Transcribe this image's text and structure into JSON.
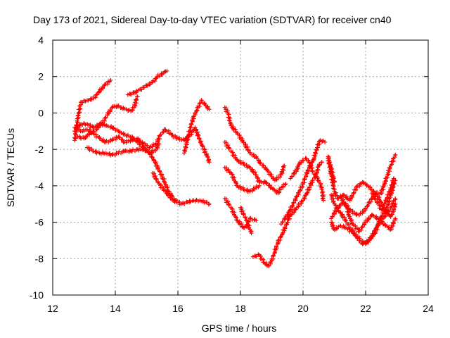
{
  "chart_data": {
    "type": "scatter",
    "title": "Day 173 of 2021, Sidereal Day-to-day VTEC variation (SDTVAR) for receiver cn40",
    "xlabel": "GPS time / hours",
    "ylabel": "SDTVAR / TECUs",
    "xlim": [
      12,
      24
    ],
    "ylim": [
      -10,
      4
    ],
    "xticks": [
      12,
      14,
      16,
      18,
      20,
      22,
      24
    ],
    "yticks": [
      -10,
      -8,
      -6,
      -4,
      -2,
      0,
      2,
      4
    ],
    "grid": true,
    "marker": "+",
    "color": "#ff0000",
    "series": [
      {
        "name": "track-a",
        "points": [
          [
            12.7,
            -1.5
          ],
          [
            12.8,
            -0.3
          ],
          [
            12.9,
            0.6
          ],
          [
            13.1,
            0.7
          ],
          [
            13.3,
            0.8
          ],
          [
            13.5,
            1.2
          ],
          [
            13.65,
            1.5
          ],
          [
            13.85,
            1.8
          ]
        ]
      },
      {
        "name": "track-b",
        "points": [
          [
            12.8,
            -1.3
          ],
          [
            13.0,
            -1.4
          ],
          [
            13.2,
            -1.1
          ],
          [
            13.4,
            -0.9
          ],
          [
            13.6,
            -0.5
          ],
          [
            13.75,
            -0.1
          ],
          [
            13.9,
            0.3
          ],
          [
            14.05,
            0.4
          ],
          [
            14.2,
            0.3
          ],
          [
            14.35,
            0.2
          ],
          [
            14.5,
            0.1
          ],
          [
            14.6,
            0.3
          ],
          [
            14.7,
            0.9
          ]
        ]
      },
      {
        "name": "track-c",
        "points": [
          [
            14.4,
            1.0
          ],
          [
            14.6,
            1.1
          ],
          [
            14.8,
            1.3
          ],
          [
            15.0,
            1.5
          ],
          [
            15.2,
            1.7
          ],
          [
            15.35,
            2.0
          ],
          [
            15.55,
            2.2
          ],
          [
            15.65,
            2.3
          ]
        ]
      },
      {
        "name": "track-d",
        "points": [
          [
            12.7,
            -0.8
          ],
          [
            12.9,
            -1.0
          ],
          [
            13.1,
            -0.9
          ],
          [
            13.3,
            -1.1
          ],
          [
            13.5,
            -1.4
          ],
          [
            13.7,
            -1.6
          ],
          [
            13.9,
            -1.5
          ],
          [
            14.1,
            -1.3
          ],
          [
            14.3,
            -1.6
          ],
          [
            14.5,
            -1.5
          ],
          [
            14.7,
            -1.4
          ],
          [
            14.9,
            -1.7
          ],
          [
            15.1,
            -1.9
          ],
          [
            15.3,
            -1.7
          ],
          [
            15.45,
            -1.2
          ],
          [
            15.6,
            -0.9
          ],
          [
            15.8,
            -1.2
          ],
          [
            16.0,
            -1.4
          ],
          [
            16.2,
            -1.5
          ],
          [
            16.4,
            -1.2
          ],
          [
            16.55,
            -0.8
          ],
          [
            16.75,
            -1.7
          ],
          [
            16.95,
            -2.4
          ],
          [
            17.0,
            -2.7
          ]
        ]
      },
      {
        "name": "track-e",
        "points": [
          [
            12.7,
            -1.0
          ],
          [
            12.8,
            -0.8
          ],
          [
            12.9,
            -0.6
          ],
          [
            13.1,
            -0.6
          ],
          [
            13.3,
            -0.8
          ],
          [
            13.5,
            -0.6
          ],
          [
            13.7,
            -0.7
          ],
          [
            13.9,
            -0.8
          ],
          [
            14.1,
            -1.0
          ],
          [
            14.3,
            -1.2
          ],
          [
            14.5,
            -1.3
          ],
          [
            14.7,
            -1.6
          ],
          [
            14.9,
            -1.9
          ],
          [
            15.1,
            -2.2
          ],
          [
            15.3,
            -2.8
          ],
          [
            15.5,
            -3.5
          ],
          [
            15.7,
            -4.3
          ],
          [
            15.9,
            -4.8
          ],
          [
            16.1,
            -5.0
          ],
          [
            16.3,
            -4.9
          ],
          [
            16.5,
            -4.8
          ],
          [
            16.7,
            -4.8
          ],
          [
            16.9,
            -4.9
          ],
          [
            17.0,
            -5.0
          ]
        ]
      },
      {
        "name": "track-f",
        "points": [
          [
            13.1,
            -1.9
          ],
          [
            13.3,
            -2.1
          ],
          [
            13.5,
            -2.2
          ],
          [
            13.7,
            -2.2
          ],
          [
            13.9,
            -2.3
          ],
          [
            14.1,
            -2.2
          ],
          [
            14.3,
            -2.1
          ],
          [
            14.5,
            -2.1
          ],
          [
            14.7,
            -2.0
          ],
          [
            14.9,
            -2.0
          ],
          [
            15.1,
            -2.2
          ],
          [
            15.3,
            -2.0
          ],
          [
            15.4,
            -1.7
          ]
        ]
      },
      {
        "name": "track-g",
        "points": [
          [
            15.2,
            -3.3
          ],
          [
            15.4,
            -3.9
          ],
          [
            15.6,
            -4.3
          ],
          [
            15.8,
            -4.7
          ],
          [
            15.9,
            -4.9
          ],
          [
            15.95,
            -4.8
          ]
        ]
      },
      {
        "name": "track-h",
        "points": [
          [
            16.2,
            -2.2
          ],
          [
            16.3,
            -1.5
          ],
          [
            16.4,
            -0.8
          ],
          [
            16.5,
            -0.2
          ],
          [
            16.65,
            0.3
          ],
          [
            16.75,
            0.7
          ],
          [
            16.85,
            0.5
          ],
          [
            17.0,
            0.2
          ]
        ]
      },
      {
        "name": "track-i",
        "points": [
          [
            17.5,
            0.3
          ],
          [
            17.6,
            0.0
          ],
          [
            17.7,
            -0.7
          ],
          [
            17.9,
            -1.1
          ],
          [
            18.1,
            -1.6
          ],
          [
            18.3,
            -2.2
          ],
          [
            18.5,
            -2.4
          ],
          [
            18.6,
            -2.7
          ],
          [
            18.8,
            -3.0
          ],
          [
            19.0,
            -3.5
          ],
          [
            19.1,
            -3.7
          ],
          [
            19.3,
            -3.4
          ],
          [
            19.4,
            -2.9
          ]
        ]
      },
      {
        "name": "track-j",
        "points": [
          [
            17.5,
            -1.6
          ],
          [
            17.7,
            -2.1
          ],
          [
            17.9,
            -2.6
          ],
          [
            18.1,
            -2.8
          ],
          [
            18.3,
            -3.0
          ],
          [
            18.5,
            -3.4
          ],
          [
            18.6,
            -3.8
          ],
          [
            18.8,
            -3.8
          ],
          [
            19.0,
            -4.1
          ],
          [
            19.2,
            -4.4
          ],
          [
            19.3,
            -4.1
          ],
          [
            19.45,
            -3.9
          ]
        ]
      },
      {
        "name": "track-k",
        "points": [
          [
            17.5,
            -3.0
          ],
          [
            17.7,
            -3.3
          ],
          [
            17.9,
            -4.0
          ],
          [
            18.1,
            -4.2
          ],
          [
            18.3,
            -4.3
          ],
          [
            18.5,
            -4.1
          ],
          [
            18.6,
            -4.0
          ]
        ]
      },
      {
        "name": "track-l",
        "points": [
          [
            17.5,
            -4.7
          ],
          [
            17.7,
            -5.2
          ],
          [
            17.9,
            -5.9
          ],
          [
            18.1,
            -6.3
          ],
          [
            18.2,
            -6.2
          ],
          [
            18.3,
            -5.8
          ],
          [
            18.5,
            -5.9
          ]
        ]
      },
      {
        "name": "track-m",
        "points": [
          [
            18.0,
            -5.2
          ],
          [
            18.2,
            -5.9
          ],
          [
            18.3,
            -6.4
          ],
          [
            18.35,
            -6.6
          ]
        ]
      },
      {
        "name": "track-n",
        "points": [
          [
            18.4,
            -7.9
          ],
          [
            18.6,
            -7.8
          ],
          [
            18.75,
            -8.2
          ],
          [
            18.9,
            -8.4
          ],
          [
            19.0,
            -8.1
          ],
          [
            19.1,
            -7.6
          ],
          [
            19.2,
            -7.1
          ],
          [
            19.35,
            -6.6
          ],
          [
            19.5,
            -6.0
          ],
          [
            19.6,
            -5.6
          ],
          [
            19.8,
            -5.2
          ],
          [
            20.0,
            -4.8
          ],
          [
            20.1,
            -4.5
          ],
          [
            20.2,
            -4.1
          ],
          [
            20.3,
            -3.7
          ],
          [
            20.4,
            -3.5
          ],
          [
            20.5,
            -2.9
          ],
          [
            20.6,
            -2.7
          ]
        ]
      },
      {
        "name": "track-o",
        "points": [
          [
            19.3,
            -6.1
          ],
          [
            19.5,
            -5.6
          ],
          [
            19.65,
            -5.1
          ],
          [
            19.8,
            -4.6
          ],
          [
            20.0,
            -3.9
          ],
          [
            20.1,
            -3.4
          ],
          [
            20.2,
            -3.0
          ],
          [
            20.35,
            -2.5
          ],
          [
            20.45,
            -1.9
          ],
          [
            20.55,
            -1.5
          ],
          [
            20.7,
            -1.6
          ]
        ]
      },
      {
        "name": "track-p",
        "points": [
          [
            19.6,
            -3.6
          ],
          [
            19.8,
            -3.1
          ],
          [
            19.9,
            -2.7
          ],
          [
            20.1,
            -2.5
          ],
          [
            20.2,
            -2.7
          ],
          [
            20.3,
            -3.2
          ],
          [
            20.5,
            -3.7
          ],
          [
            20.6,
            -4.1
          ],
          [
            20.65,
            -4.8
          ]
        ]
      },
      {
        "name": "track-q",
        "points": [
          [
            20.8,
            -2.4
          ],
          [
            20.9,
            -3.4
          ],
          [
            21.0,
            -4.3
          ],
          [
            21.1,
            -4.7
          ],
          [
            21.3,
            -4.5
          ],
          [
            21.5,
            -4.8
          ],
          [
            21.7,
            -4.1
          ],
          [
            21.9,
            -3.8
          ],
          [
            22.0,
            -3.9
          ],
          [
            22.2,
            -4.2
          ],
          [
            22.4,
            -4.6
          ],
          [
            22.6,
            -5.3
          ],
          [
            22.8,
            -5.7
          ],
          [
            22.9,
            -5.3
          ],
          [
            22.95,
            -5.0
          ]
        ]
      },
      {
        "name": "track-r",
        "points": [
          [
            20.9,
            -5.8
          ],
          [
            21.1,
            -5.2
          ],
          [
            21.3,
            -4.9
          ],
          [
            21.5,
            -5.3
          ],
          [
            21.7,
            -5.6
          ],
          [
            21.9,
            -5.5
          ],
          [
            22.1,
            -5.0
          ],
          [
            22.3,
            -4.4
          ],
          [
            22.5,
            -4.4
          ],
          [
            22.7,
            -3.4
          ],
          [
            22.8,
            -2.9
          ],
          [
            22.95,
            -2.3
          ]
        ]
      },
      {
        "name": "track-s",
        "points": [
          [
            20.9,
            -6.0
          ],
          [
            21.0,
            -6.4
          ],
          [
            21.2,
            -6.2
          ],
          [
            21.4,
            -6.3
          ],
          [
            21.6,
            -6.6
          ],
          [
            21.8,
            -6.9
          ],
          [
            22.0,
            -7.2
          ],
          [
            22.2,
            -6.8
          ],
          [
            22.4,
            -6.1
          ],
          [
            22.6,
            -5.7
          ],
          [
            22.8,
            -5.2
          ],
          [
            22.95,
            -4.7
          ]
        ]
      },
      {
        "name": "track-t",
        "points": [
          [
            21.2,
            -4.6
          ],
          [
            21.4,
            -5.2
          ],
          [
            21.5,
            -5.8
          ],
          [
            21.6,
            -6.1
          ],
          [
            21.8,
            -6.5
          ],
          [
            22.0,
            -6.0
          ],
          [
            22.2,
            -5.6
          ],
          [
            22.4,
            -5.8
          ],
          [
            22.6,
            -6.1
          ],
          [
            22.8,
            -6.4
          ],
          [
            22.95,
            -5.8
          ]
        ]
      },
      {
        "name": "track-u",
        "points": [
          [
            20.9,
            -4.5
          ],
          [
            21.0,
            -5.0
          ],
          [
            21.2,
            -5.5
          ],
          [
            21.4,
            -6.0
          ],
          [
            21.5,
            -6.3
          ],
          [
            21.8,
            -7.0
          ],
          [
            21.9,
            -7.2
          ],
          [
            22.1,
            -7.0
          ],
          [
            22.3,
            -6.6
          ],
          [
            22.5,
            -5.7
          ],
          [
            22.7,
            -5.1
          ],
          [
            22.8,
            -4.5
          ],
          [
            22.95,
            -3.7
          ]
        ]
      },
      {
        "name": "track-v",
        "points": [
          [
            22.2,
            -4.4
          ],
          [
            22.4,
            -5.0
          ],
          [
            22.5,
            -5.3
          ],
          [
            22.6,
            -5.0
          ],
          [
            22.8,
            -4.2
          ],
          [
            22.9,
            -3.6
          ]
        ]
      },
      {
        "name": "track-w",
        "points": [
          [
            20.8,
            -2.5
          ],
          [
            20.9,
            -3.0
          ],
          [
            21.0,
            -3.8
          ]
        ]
      }
    ]
  }
}
